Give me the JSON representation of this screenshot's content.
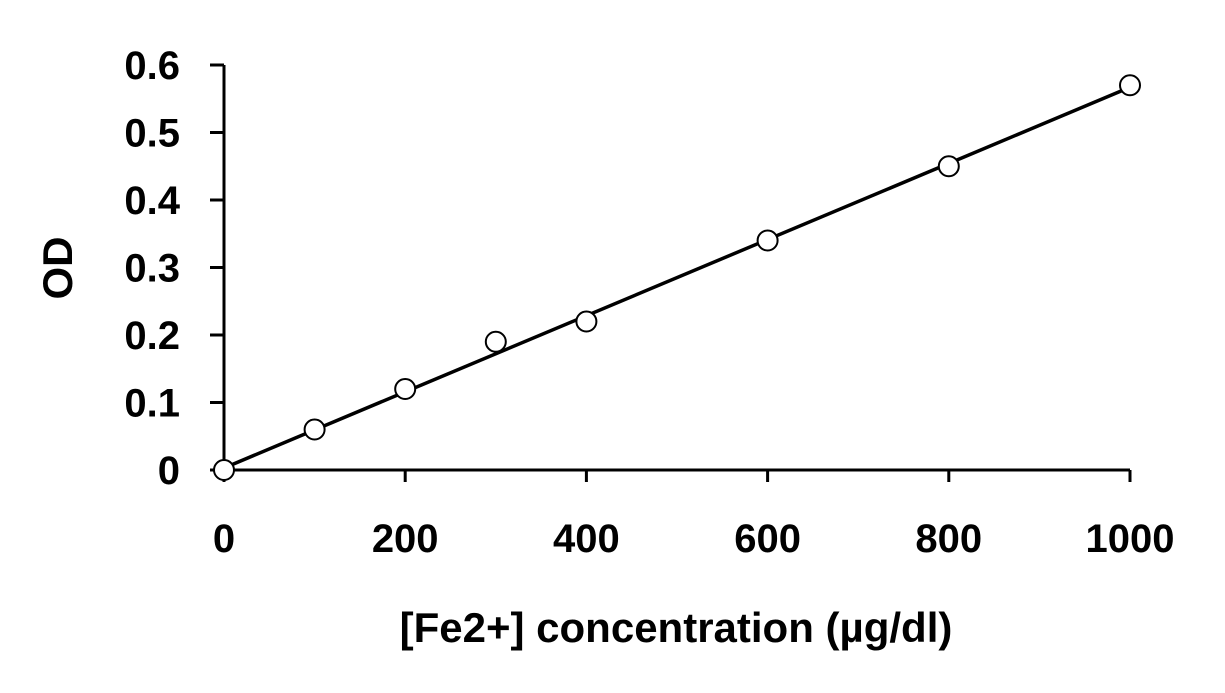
{
  "chart_data": {
    "type": "scatter",
    "title": "",
    "xlabel": "[Fe2+] concentration (µg/dl)",
    "ylabel": "OD",
    "xlim": [
      0,
      1000
    ],
    "ylim": [
      0,
      0.6
    ],
    "xticks": [
      {
        "value": 0,
        "label": "0"
      },
      {
        "value": 200,
        "label": "200"
      },
      {
        "value": 400,
        "label": "400"
      },
      {
        "value": 600,
        "label": "600"
      },
      {
        "value": 800,
        "label": "800"
      },
      {
        "value": 1000,
        "label": "1000"
      }
    ],
    "yticks": [
      {
        "value": 0,
        "label": "0"
      },
      {
        "value": 0.1,
        "label": "0.1"
      },
      {
        "value": 0.2,
        "label": "0.2"
      },
      {
        "value": 0.3,
        "label": "0.3"
      },
      {
        "value": 0.4,
        "label": "0.4"
      },
      {
        "value": 0.5,
        "label": "0.5"
      },
      {
        "value": 0.6,
        "label": "0.6"
      }
    ],
    "grid": false,
    "legend": "none",
    "series": [
      {
        "marker": "open-circle",
        "x": [
          0,
          100,
          200,
          300,
          400,
          600,
          800,
          1000
        ],
        "y": [
          0,
          0.06,
          0.12,
          0.19,
          0.22,
          0.34,
          0.45,
          0.57
        ]
      }
    ],
    "trendline": {
      "type": "linear",
      "from": [
        0,
        0.003
      ],
      "to": [
        1000,
        0.567
      ]
    },
    "colors": {
      "axis": "#000000",
      "marker_stroke": "#000000",
      "marker_fill": "#ffffff",
      "line": "#000000"
    }
  }
}
